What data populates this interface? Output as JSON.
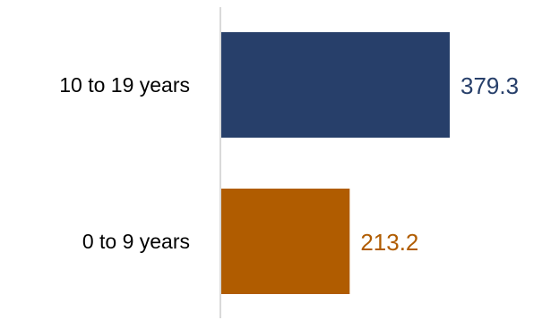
{
  "chart_data": {
    "type": "bar",
    "orientation": "horizontal",
    "categories": [
      "10 to 19 years",
      "0 to 9 years"
    ],
    "values": [
      379.3,
      213.2
    ],
    "value_labels": [
      "379.3",
      "213.2"
    ],
    "bar_colors": [
      "#273f6a",
      "#b05c00"
    ],
    "title": "",
    "xlabel": "",
    "ylabel": "",
    "xlim": [
      0,
      379.3
    ],
    "grid": false,
    "legend": "none"
  }
}
